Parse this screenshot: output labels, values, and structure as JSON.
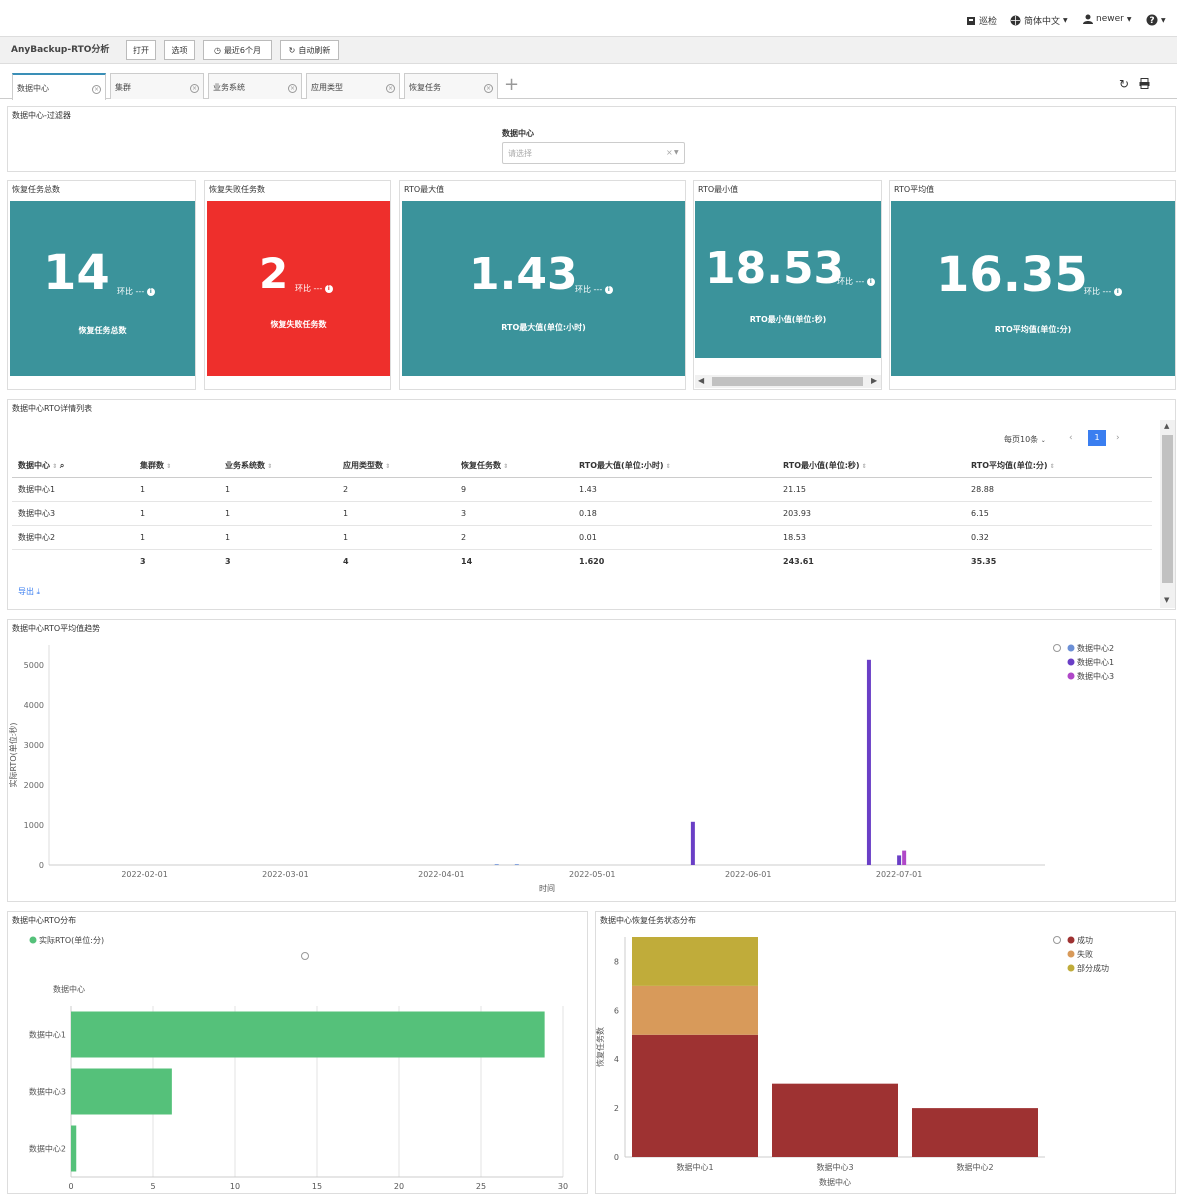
{
  "topbar": {
    "inspect": "巡检",
    "language": "简体中文",
    "user": "newer"
  },
  "toolbar": {
    "app_title": "AnyBackup-RTO分析",
    "open": "打开",
    "options": "选项",
    "time_range": "最近6个月",
    "auto_refresh": "自动刷新"
  },
  "tabs": [
    {
      "label": "数据中心",
      "active": true
    },
    {
      "label": "集群",
      "active": false
    },
    {
      "label": "业务系统",
      "active": false
    },
    {
      "label": "应用类型",
      "active": false
    },
    {
      "label": "恢复任务",
      "active": false
    }
  ],
  "filter": {
    "title": "数据中心-过滤器",
    "label": "数据中心",
    "placeholder": "请选择"
  },
  "kpis": [
    {
      "title": "恢复任务总数",
      "value": "14",
      "ratio": "环比 ---",
      "caption": "恢复任务总数",
      "color": "#3b939b"
    },
    {
      "title": "恢复失败任务数",
      "value": "2",
      "ratio": "环比 ---",
      "caption": "恢复失败任务数",
      "color": "#ee2f2c"
    },
    {
      "title": "RTO最大值",
      "value": "1.43",
      "ratio": "环比 ---",
      "caption": "RTO最大值(单位:小时)",
      "color": "#3b939b"
    },
    {
      "title": "RTO最小值",
      "value": "18.53",
      "ratio": "环比 ---",
      "caption": "RTO最小值(单位:秒)",
      "color": "#3b939b"
    },
    {
      "title": "RTO平均值",
      "value": "16.35",
      "ratio": "环比 ---",
      "caption": "RTO平均值(单位:分)",
      "color": "#3b939b"
    }
  ],
  "detail_table": {
    "title": "数据中心RTO详情列表",
    "page_size": "每页10条",
    "current_page": "1",
    "export": "导出",
    "columns": [
      "数据中心",
      "集群数",
      "业务系统数",
      "应用类型数",
      "恢复任务数",
      "RTO最大值(单位:小时)",
      "RTO最小值(单位:秒)",
      "RTO平均值(单位:分)"
    ],
    "rows": [
      [
        "数据中心1",
        "1",
        "1",
        "2",
        "9",
        "1.43",
        "21.15",
        "28.88"
      ],
      [
        "数据中心3",
        "1",
        "1",
        "1",
        "3",
        "0.18",
        "203.93",
        "6.15"
      ],
      [
        "数据中心2",
        "1",
        "1",
        "1",
        "2",
        "0.01",
        "18.53",
        "0.32"
      ]
    ],
    "totals": [
      "",
      "3",
      "3",
      "4",
      "14",
      "1.620",
      "243.61",
      "35.35"
    ]
  },
  "chart_data": [
    {
      "type": "bar",
      "title": "数据中心RTO平均值趋势",
      "xlabel": "时间",
      "ylabel": "实际RTO(单位:秒)",
      "ylim": [
        0,
        5500
      ],
      "yticks": [
        0,
        1000,
        2000,
        3000,
        4000,
        5000
      ],
      "xticks": [
        "2022-02-01",
        "2022-03-01",
        "2022-04-01",
        "2022-05-01",
        "2022-06-01",
        "2022-07-01"
      ],
      "x_range": [
        "2022-01-13",
        "2022-07-30"
      ],
      "legend_position": "top-right",
      "series": [
        {
          "name": "数据中心2",
          "color": "#6b8fd6",
          "points": [
            {
              "x": "2022-04-12",
              "y": 20
            },
            {
              "x": "2022-04-16",
              "y": 20
            }
          ]
        },
        {
          "name": "数据中心1",
          "color": "#6a3fc6",
          "points": [
            {
              "x": "2022-05-21",
              "y": 1080
            },
            {
              "x": "2022-06-25",
              "y": 5130
            },
            {
              "x": "2022-07-01",
              "y": 240
            }
          ]
        },
        {
          "name": "数据中心3",
          "color": "#b048c8",
          "points": [
            {
              "x": "2022-07-02",
              "y": 360
            }
          ]
        }
      ]
    },
    {
      "type": "bar",
      "orientation": "horizontal",
      "title": "数据中心RTO分布",
      "ylabel": "数据中心",
      "categories": [
        "数据中心1",
        "数据中心3",
        "数据中心2"
      ],
      "series": [
        {
          "name": "实际RTO(单位:分)",
          "color": "#55c17a",
          "values": [
            28.88,
            6.15,
            0.32
          ]
        }
      ],
      "xlim": [
        0,
        30
      ],
      "xticks": [
        0,
        5,
        10,
        15,
        20,
        25,
        30
      ],
      "legend_position": "top-left"
    },
    {
      "type": "bar",
      "stacked": true,
      "title": "数据中心恢复任务状态分布",
      "xlabel": "数据中心",
      "ylabel": "恢复任务数",
      "categories": [
        "数据中心1",
        "数据中心3",
        "数据中心2"
      ],
      "ylim": [
        0,
        9
      ],
      "yticks": [
        0,
        2,
        4,
        6,
        8
      ],
      "legend_position": "top-right",
      "series": [
        {
          "name": "成功",
          "color": "#9e3232",
          "values": [
            5,
            3,
            2
          ]
        },
        {
          "name": "失败",
          "color": "#d89a5a",
          "values": [
            2,
            0,
            0
          ]
        },
        {
          "name": "部分成功",
          "color": "#c0ac3a",
          "values": [
            2,
            0,
            0
          ]
        }
      ]
    }
  ]
}
